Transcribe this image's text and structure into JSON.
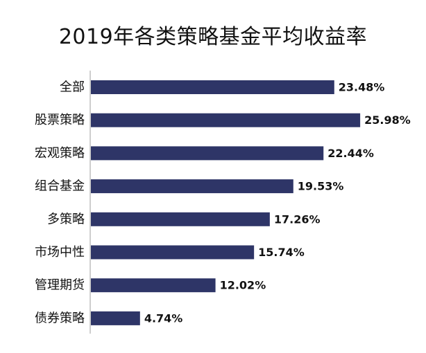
{
  "chart_data": {
    "type": "bar",
    "orientation": "horizontal",
    "title": "2019年各类策略基金平均收益率",
    "categories": [
      "全部",
      "股票策略",
      "宏观策略",
      "组合基金",
      "多策略",
      "市场中性",
      "管理期货",
      "债券策略"
    ],
    "values": [
      23.48,
      25.98,
      22.44,
      19.53,
      17.26,
      15.74,
      12.02,
      4.74
    ],
    "value_labels": [
      "23.48%",
      "25.98%",
      "22.44%",
      "19.53%",
      "17.26%",
      "15.74%",
      "12.02%",
      "4.74%"
    ],
    "unit": "%",
    "xlim": [
      0,
      30
    ],
    "grid": false,
    "legend": "none",
    "colors": {
      "bar": "#2e3567",
      "axis": "#bdbdbd",
      "text": "#111111"
    }
  }
}
